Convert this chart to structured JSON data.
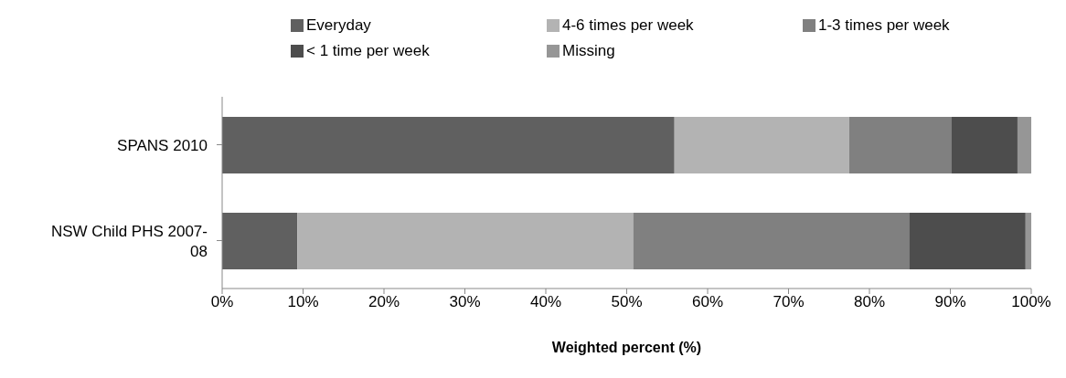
{
  "chart_data": {
    "type": "bar",
    "orientation": "horizontal",
    "stacked": true,
    "xlabel": "Weighted percent (%)",
    "categories": [
      "SPANS 2010",
      "NSW Child PHS 2007-08"
    ],
    "series": [
      {
        "name": "Everyday",
        "color": "#606060",
        "values": [
          55.9,
          9.3
        ]
      },
      {
        "name": "4-6 times per week",
        "color": "#b3b3b3",
        "values": [
          21.6,
          41.5
        ]
      },
      {
        "name": "1-3 times per week",
        "color": "#808080",
        "values": [
          12.6,
          34.1
        ]
      },
      {
        "name": "< 1 time per week",
        "color": "#4d4d4d",
        "values": [
          8.2,
          14.4
        ]
      },
      {
        "name": "Missing",
        "color": "#969696",
        "values": [
          1.7,
          0.7
        ]
      }
    ],
    "xlim": [
      0,
      100
    ],
    "xticks": [
      {
        "value": 0,
        "label": "0%"
      },
      {
        "value": 10,
        "label": "10%"
      },
      {
        "value": 20,
        "label": "20%"
      },
      {
        "value": 30,
        "label": "30%"
      },
      {
        "value": 40,
        "label": "40%"
      },
      {
        "value": 50,
        "label": "50%"
      },
      {
        "value": 60,
        "label": "60%"
      },
      {
        "value": 70,
        "label": "70%"
      },
      {
        "value": 80,
        "label": "80%"
      },
      {
        "value": 90,
        "label": "90%"
      },
      {
        "value": 100,
        "label": "100%"
      }
    ],
    "grid": false,
    "legend": "top"
  }
}
